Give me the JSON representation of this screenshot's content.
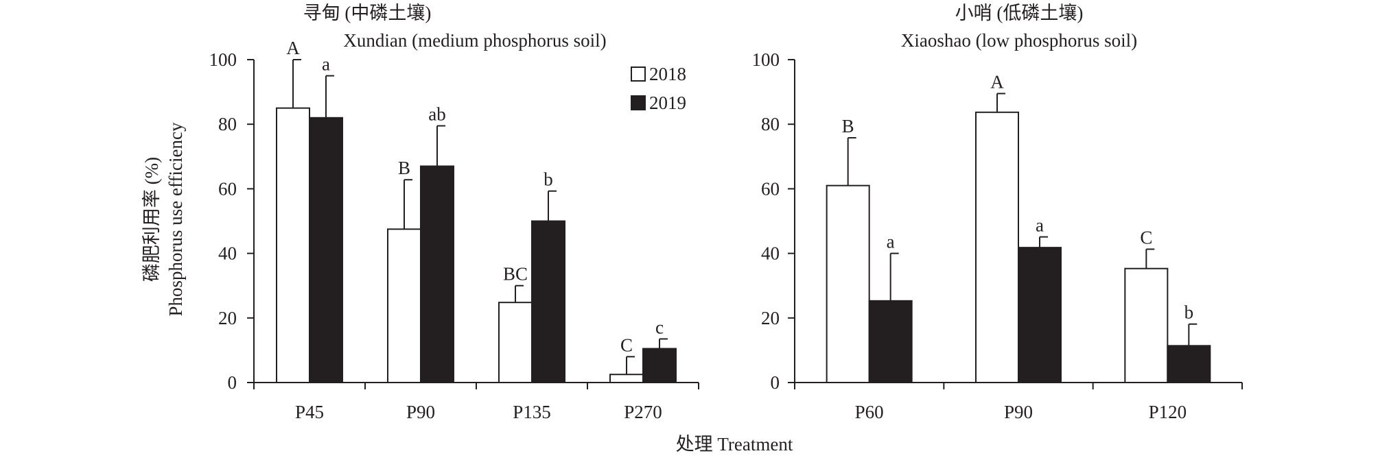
{
  "figure": {
    "y_axis_label_cn": "磷肥利用率 (%)",
    "y_axis_label_en": "Phosphorus use efficiency",
    "x_axis_label": "处理 Treatment",
    "legend": [
      {
        "name": "2018",
        "fill": "#ffffff"
      },
      {
        "name": "2019",
        "fill": "#231f20"
      }
    ]
  },
  "chart_data": [
    {
      "type": "bar",
      "title": "寻甸 (中磷土壤)",
      "subtitle": "Xundian (medium phosphorus soil)",
      "xlabel": "处理 Treatment",
      "ylabel": "磷肥利用率 (%) Phosphorus use efficiency",
      "ylim": [
        0,
        100
      ],
      "yticks": [
        0,
        20,
        40,
        60,
        80,
        100
      ],
      "legend_position": "top-right",
      "categories": [
        "P45",
        "P90",
        "P135",
        "P270"
      ],
      "series": [
        {
          "name": "2018",
          "fill": "#ffffff",
          "values": [
            85,
            47.5,
            24.8,
            2.5
          ],
          "errors": [
            15,
            15.3,
            5.2,
            5.5
          ],
          "labels": [
            "A",
            "B",
            "BC",
            "C"
          ]
        },
        {
          "name": "2019",
          "fill": "#231f20",
          "values": [
            82,
            67,
            50,
            10.5
          ],
          "errors": [
            13,
            12.5,
            9.3,
            3
          ],
          "labels": [
            "a",
            "ab",
            "b",
            "c"
          ]
        }
      ]
    },
    {
      "type": "bar",
      "title": "小哨 (低磷土壤)",
      "subtitle": "Xiaoshao (low phosphorus soil)",
      "xlabel": "处理 Treatment",
      "ylabel": "",
      "ylim": [
        0,
        100
      ],
      "yticks": [
        0,
        20,
        40,
        60,
        80,
        100
      ],
      "legend_position": "",
      "categories": [
        "P60",
        "P90",
        "P120"
      ],
      "series": [
        {
          "name": "2018",
          "fill": "#ffffff",
          "values": [
            61,
            83.7,
            35.3
          ],
          "errors": [
            14.8,
            5.8,
            6
          ],
          "labels": [
            "B",
            "A",
            "C"
          ]
        },
        {
          "name": "2019",
          "fill": "#231f20",
          "values": [
            25.3,
            41.8,
            11.4
          ],
          "errors": [
            14.7,
            3.3,
            6.7
          ],
          "labels": [
            "a",
            "a",
            "b"
          ]
        }
      ]
    }
  ]
}
